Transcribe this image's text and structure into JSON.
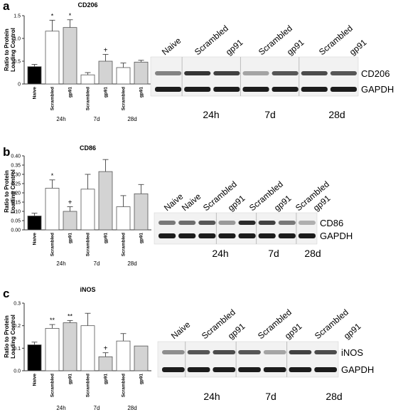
{
  "panels": [
    {
      "letter": "a",
      "blot": {
        "lanes": [
          "Naive",
          "Scrambled",
          "gp91",
          "Scrambled",
          "gp91",
          "Scrambled",
          "gp91"
        ],
        "protein": "CD206",
        "control": "GAPDH",
        "timepoints": [
          "24h",
          "7d",
          "28d"
        ]
      }
    },
    {
      "letter": "b",
      "blot": {
        "lanes": [
          "Naive",
          "Naive",
          "Scrambled",
          "gp91",
          "Scrambled",
          "gp91",
          "Scrambled",
          "gp91"
        ],
        "protein": "CD86",
        "control": "GAPDH",
        "timepoints": [
          "24h",
          "7d",
          "28d"
        ]
      }
    },
    {
      "letter": "c",
      "blot": {
        "lanes": [
          "Naive",
          "Scrambled",
          "gp91",
          "Scrambled",
          "gp91",
          "Scrambled",
          "gp91"
        ],
        "protein": "iNOS",
        "control": "GAPDH",
        "timepoints": [
          "24h",
          "7d",
          "28d"
        ]
      }
    }
  ],
  "chart_data": [
    {
      "type": "bar",
      "title": "CD206",
      "ylabel": "Ratio to Protein Loading Control",
      "ylim": [
        0,
        1.5
      ],
      "yticks": [
        "0",
        "0.5",
        "1.0",
        "1.5"
      ],
      "categories": [
        "Naive",
        "Scrambled",
        "gp91",
        "Scrambled",
        "gp91",
        "Scrambled",
        "gp91"
      ],
      "groups": [
        "24h",
        "7d",
        "28d"
      ],
      "values": [
        0.38,
        1.16,
        1.24,
        0.2,
        0.5,
        0.36,
        0.48
      ],
      "errors": [
        0.05,
        0.24,
        0.17,
        0.05,
        0.15,
        0.1,
        0.04
      ],
      "annotations": [
        "",
        "*",
        "*",
        "",
        "+",
        "",
        ""
      ],
      "colors": [
        "#000000",
        "#ffffff",
        "#d3d3d3",
        "#ffffff",
        "#d3d3d3",
        "#ffffff",
        "#d3d3d3"
      ]
    },
    {
      "type": "bar",
      "title": "CD86",
      "ylabel": "Ratio to Protein Loading Control",
      "ylim": [
        0,
        0.4
      ],
      "yticks": [
        "0.00",
        "0.05",
        "0.10",
        "0.15",
        "0.20",
        "0.25",
        "0.30",
        "0.35",
        "0.40"
      ],
      "categories": [
        "Naive",
        "Scrambled",
        "gp91",
        "Scrambled",
        "gp91",
        "Scrambled",
        "gp91"
      ],
      "groups": [
        "24h",
        "7d",
        "28d"
      ],
      "values": [
        0.075,
        0.225,
        0.1,
        0.22,
        0.315,
        0.125,
        0.195
      ],
      "errors": [
        0.015,
        0.045,
        0.025,
        0.08,
        0.065,
        0.06,
        0.05
      ],
      "annotations": [
        "",
        "*",
        "+",
        "",
        "",
        "",
        ""
      ],
      "colors": [
        "#000000",
        "#ffffff",
        "#d3d3d3",
        "#ffffff",
        "#d3d3d3",
        "#ffffff",
        "#d3d3d3"
      ]
    },
    {
      "type": "bar",
      "title": "iNOS",
      "ylabel": "Ratio to Protein Loading Control",
      "ylim": [
        0,
        0.3
      ],
      "yticks": [
        "0.0",
        "0.1",
        "0.2",
        "0.3"
      ],
      "categories": [
        "Naive",
        "Scrambled",
        "gp91",
        "Scrambled",
        "gp91",
        "Scrambled",
        "gp91"
      ],
      "groups": [
        "24h",
        "7d",
        "28d"
      ],
      "values": [
        0.115,
        0.188,
        0.213,
        0.2,
        0.062,
        0.132,
        0.11
      ],
      "errors": [
        0.012,
        0.017,
        0.01,
        0.055,
        0.018,
        0.033,
        0
      ],
      "annotations": [
        "",
        "**",
        "**",
        "",
        "+",
        "",
        ""
      ],
      "colors": [
        "#000000",
        "#ffffff",
        "#d3d3d3",
        "#ffffff",
        "#d3d3d3",
        "#ffffff",
        "#d3d3d3"
      ]
    }
  ]
}
